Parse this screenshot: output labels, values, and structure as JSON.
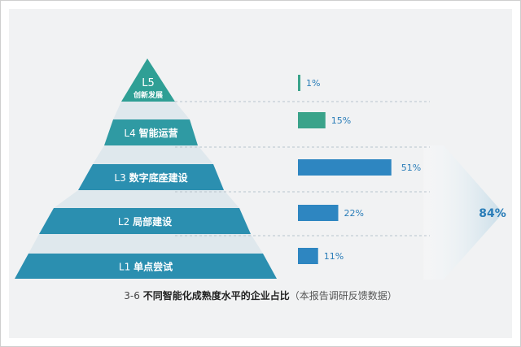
{
  "chart_data": {
    "type": "bar",
    "categories": [
      "L5 创新发展",
      "L4 智能运营",
      "L3 数字底座建设",
      "L2 局部建设",
      "L1 单点尝试"
    ],
    "levels": [
      {
        "code": "L5",
        "name": "创新发展",
        "value": 1,
        "value_label": "1%"
      },
      {
        "code": "L4",
        "name": "智能运营",
        "value": 15,
        "value_label": "15%"
      },
      {
        "code": "L3",
        "name": "数字底座建设",
        "value": 51,
        "value_label": "51%"
      },
      {
        "code": "L2",
        "name": "局部建设",
        "value": 22,
        "value_label": "22%"
      },
      {
        "code": "L1",
        "name": "单点尝试",
        "value": 11,
        "value_label": "11%"
      }
    ],
    "values": [
      1,
      15,
      51,
      22,
      11
    ],
    "bracket": {
      "covers": [
        "L1",
        "L2",
        "L3"
      ],
      "value": 84,
      "label": "84%"
    },
    "colors": {
      "pyramid": "#2b8fb0",
      "pyramid_top": "#2f9f95",
      "bar_default": "#2e86c1",
      "bar_l4": "#3aa38a",
      "bar_l5": "#3aa38a",
      "label_text": "#2a7db8",
      "bracket_label": "#2a7db8",
      "bracket_fill": "#cfe1ea",
      "dash": "#b8c4cc"
    }
  },
  "caption": {
    "number": "3-6",
    "title": "不同智能化成熟度水平的企业占比",
    "source": "（本报告调研反馈数据）"
  }
}
